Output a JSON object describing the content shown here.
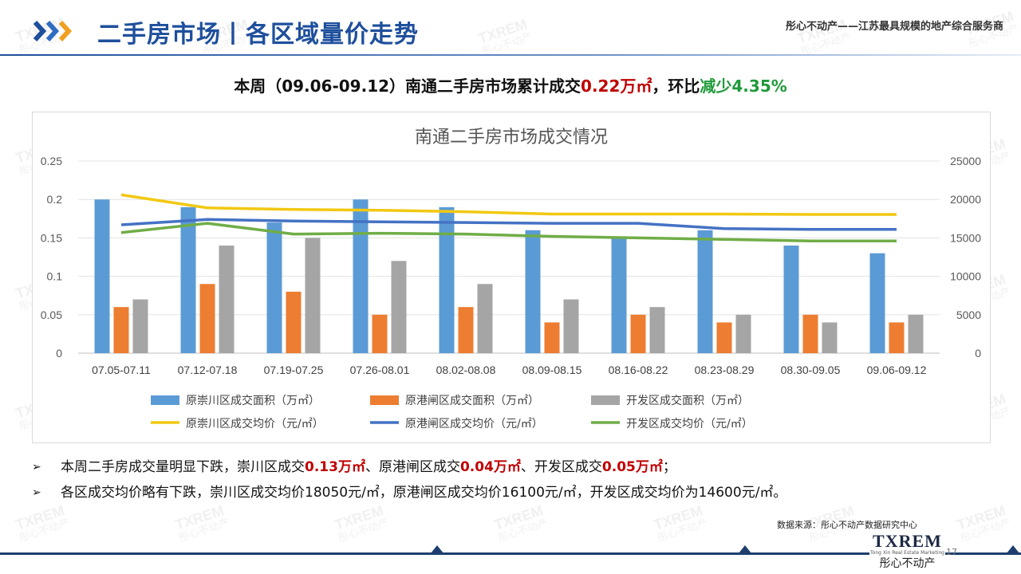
{
  "header": {
    "title": "二手房市场丨各区域量价走势",
    "slogan": "彤心不动产——江苏最具规模的地产综合服务商"
  },
  "headline": {
    "prefix": "本周（09.06-09.12）南通二手房市场累计成交",
    "volume": "0.22万㎡",
    "middle": "，环比",
    "change": "减少4.35%"
  },
  "colors": {
    "title_blue": "#1e4f9c",
    "highlight_red": "#c00000",
    "highlight_green": "#1f9a3a",
    "bar_chongchuan": "#5b9bd5",
    "bar_gangzha": "#ed7d31",
    "bar_kaifa": "#a5a5a5",
    "line_chongchuan": "#f2c811",
    "line_gangzha": "#4472c4",
    "line_kaifa": "#70ad47"
  },
  "chart_data": {
    "type": "bar",
    "title": "南通二手房市场成交情况",
    "categories": [
      "07.05-07.11",
      "07.12-07.18",
      "07.19-07.25",
      "07.26-08.01",
      "08.02-08.08",
      "08.09-08.15",
      "08.16-08.22",
      "08.23-08.29",
      "08.30-09.05",
      "09.06-09.12"
    ],
    "ylim_left": [
      0,
      0.25
    ],
    "yticks_left": [
      "0",
      "0.05",
      "0.1",
      "0.15",
      "0.2",
      "0.25"
    ],
    "ylim_right": [
      0,
      25000
    ],
    "yticks_right": [
      "0",
      "5000",
      "10000",
      "15000",
      "20000",
      "25000"
    ],
    "grid": true,
    "legend_position": "bottom",
    "bar_series": [
      {
        "name": "原崇川区成交面积（万㎡）",
        "axis": "left",
        "values": [
          0.2,
          0.19,
          0.17,
          0.2,
          0.19,
          0.16,
          0.15,
          0.16,
          0.14,
          0.13
        ]
      },
      {
        "name": "原港闸区成交面积（万㎡）",
        "axis": "left",
        "values": [
          0.06,
          0.09,
          0.08,
          0.05,
          0.06,
          0.04,
          0.05,
          0.04,
          0.05,
          0.04
        ]
      },
      {
        "name": "开发区成交面积（万㎡）",
        "axis": "left",
        "values": [
          0.07,
          0.14,
          0.15,
          0.12,
          0.09,
          0.07,
          0.06,
          0.05,
          0.04,
          0.05
        ]
      }
    ],
    "line_series": [
      {
        "name": "原崇川区成交均价（元/㎡）",
        "axis": "right",
        "values": [
          20600,
          18900,
          18700,
          18600,
          18400,
          18100,
          18100,
          18100,
          18050,
          18050
        ]
      },
      {
        "name": "原港闸区成交均价（元/㎡）",
        "axis": "right",
        "values": [
          16700,
          17400,
          17200,
          17100,
          17000,
          16900,
          16900,
          16200,
          16100,
          16100
        ]
      },
      {
        "name": "开发区成交均价（元/㎡）",
        "axis": "right",
        "values": [
          15700,
          16900,
          15500,
          15600,
          15500,
          15200,
          15000,
          14800,
          14600,
          14600
        ]
      }
    ]
  },
  "bullets": [
    {
      "t1": "本周二手房成交量明显下跌，崇川区成交",
      "v1": "0.13万㎡",
      "t2": "、原港闸区成交",
      "v2": "0.04万㎡",
      "t3": "、开发区成交",
      "v3": "0.05万㎡",
      "t4": "；"
    },
    {
      "text": "各区成交均价略有下跌，崇川区成交均价18050元/㎡，原港闸区成交均价16100元/㎡，开发区成交均价为14600元/㎡。"
    }
  ],
  "source": "数据来源：彤心不动产数据研究中心",
  "footer": {
    "logo_en": "TXREM",
    "logo_sub": "Tong Xin Real Estate Marketing",
    "logo_cn": "彤心不动产",
    "page_number": "17"
  },
  "watermark": {
    "en": "TXREM",
    "cn": "彤心不动产"
  }
}
